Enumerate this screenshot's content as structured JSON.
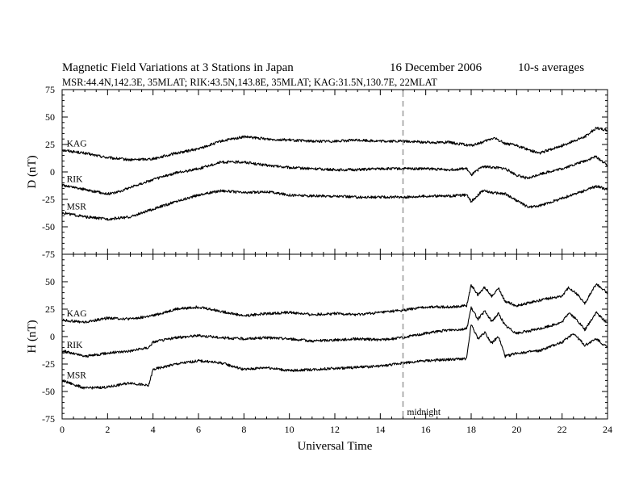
{
  "header": {
    "title": "Magnetic Field Variations at 3 Stations in Japan",
    "date": "16 December 2006",
    "averaging": "10-s averages",
    "stations": "MSR:44.4N,142.3E, 35MLAT;  RIK:43.5N,143.8E, 35MLAT;  KAG:31.5N,130.7E, 22MLAT"
  },
  "chart_data": [
    {
      "type": "line",
      "panel": "D",
      "ylabel": "D (nT)",
      "xlabel": "",
      "xlim": [
        0,
        24
      ],
      "ylim": [
        -75,
        75
      ],
      "yticks": [
        75,
        50,
        25,
        0,
        -25,
        -50,
        -75
      ],
      "xticks": [
        0,
        2,
        4,
        6,
        8,
        10,
        12,
        14,
        16,
        18,
        20,
        22,
        24
      ],
      "series": [
        {
          "name": "KAG",
          "x": [
            0,
            1,
            2,
            3,
            4,
            5,
            6,
            7,
            8,
            9,
            10,
            11,
            12,
            13,
            14,
            15,
            16,
            17,
            18,
            18.5,
            19,
            19.5,
            20,
            21,
            22,
            23,
            23.5,
            24
          ],
          "values": [
            20,
            17,
            13,
            11,
            12,
            17,
            21,
            28,
            32,
            30,
            29,
            28,
            28,
            29,
            28,
            28,
            27,
            27,
            24,
            27,
            31,
            26,
            24,
            17,
            24,
            32,
            40,
            38
          ]
        },
        {
          "name": "RIK",
          "x": [
            0,
            1,
            2,
            2.5,
            3,
            4,
            5,
            6,
            7,
            8,
            9,
            10,
            11,
            12,
            13,
            14,
            15,
            16,
            17,
            17.8,
            18,
            18.5,
            19,
            19.5,
            20,
            20.5,
            21,
            22,
            23,
            23.5,
            24
          ],
          "values": [
            -12,
            -16,
            -20,
            -18,
            -14,
            -7,
            -1,
            3,
            9,
            9,
            6,
            4,
            3,
            2,
            2,
            3,
            3,
            3,
            2,
            3,
            -3,
            5,
            4,
            3,
            -3,
            -6,
            -2,
            3,
            10,
            14,
            6
          ]
        },
        {
          "name": "MSR",
          "x": [
            0,
            1,
            2,
            2.5,
            3,
            4,
            5,
            6,
            7,
            8,
            9,
            10,
            11,
            12,
            13,
            14,
            15,
            16,
            17,
            17.8,
            18,
            18.5,
            19,
            19.5,
            20,
            20.5,
            21,
            22,
            23,
            23.5,
            24
          ],
          "values": [
            -37,
            -41,
            -43,
            -42,
            -41,
            -34,
            -27,
            -21,
            -17,
            -19,
            -18,
            -21,
            -22,
            -22,
            -23,
            -23,
            -23,
            -22,
            -22,
            -21,
            -27,
            -17,
            -19,
            -20,
            -26,
            -32,
            -31,
            -24,
            -17,
            -13,
            -16
          ]
        }
      ]
    },
    {
      "type": "line",
      "panel": "H",
      "ylabel": "H (nT)",
      "xlabel": "Universal Time",
      "xlim": [
        0,
        24
      ],
      "ylim": [
        -75,
        75
      ],
      "yticks": [
        50,
        25,
        0,
        -25,
        -50,
        -75
      ],
      "xticks": [
        0,
        2,
        4,
        6,
        8,
        10,
        12,
        14,
        16,
        18,
        20,
        22,
        24
      ],
      "series": [
        {
          "name": "KAG",
          "x": [
            0,
            1,
            2,
            3,
            4,
            5,
            6,
            7,
            8,
            9,
            10,
            11,
            12,
            13,
            14,
            15,
            16,
            17,
            17.8,
            18,
            18.3,
            18.6,
            18.9,
            19.2,
            19.5,
            20,
            21,
            22,
            22.3,
            22.7,
            23,
            23.5,
            24
          ],
          "values": [
            15,
            13,
            17,
            16,
            19,
            25,
            27,
            23,
            19,
            21,
            22,
            20,
            21,
            20,
            22,
            24,
            27,
            27,
            28,
            47,
            38,
            45,
            37,
            44,
            32,
            28,
            33,
            37,
            45,
            38,
            30,
            48,
            40
          ]
        },
        {
          "name": "RIK",
          "x": [
            0,
            1,
            2,
            3,
            3.8,
            4,
            5,
            6,
            7,
            8,
            9,
            10,
            11,
            12,
            13,
            14,
            15,
            16,
            17,
            17.8,
            18,
            18.3,
            18.6,
            18.9,
            19.2,
            19.5,
            20,
            21,
            22,
            22.3,
            22.7,
            23,
            23.5,
            24
          ],
          "values": [
            -13,
            -18,
            -15,
            -13,
            -10,
            -5,
            -1,
            1,
            -1,
            -2,
            -1,
            -2,
            -4,
            -3,
            -2,
            -3,
            -1,
            3,
            6,
            7,
            26,
            16,
            23,
            14,
            21,
            10,
            3,
            7,
            13,
            22,
            14,
            6,
            22,
            12
          ]
        },
        {
          "name": "MSR",
          "x": [
            0,
            1,
            2,
            2.5,
            3,
            3.8,
            4,
            5,
            6,
            7,
            8,
            9,
            10,
            11,
            12,
            13,
            14,
            15,
            16,
            17,
            17.8,
            18,
            18.3,
            18.6,
            18.9,
            19.2,
            19.5,
            20,
            21,
            22,
            22.5,
            23,
            23.5,
            24
          ],
          "values": [
            -40,
            -47,
            -46,
            -44,
            -42,
            -45,
            -30,
            -25,
            -22,
            -24,
            -30,
            -28,
            -31,
            -30,
            -29,
            -28,
            -27,
            -24,
            -22,
            -21,
            -20,
            11,
            -2,
            4,
            -6,
            0,
            -18,
            -15,
            -13,
            -5,
            3,
            -8,
            -2,
            -10
          ]
        }
      ]
    }
  ],
  "annotations": {
    "midnight_label": "midnight",
    "midnight_ut": 15
  }
}
